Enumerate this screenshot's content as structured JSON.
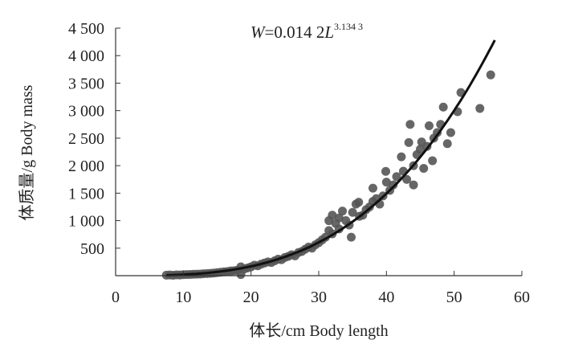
{
  "chart_data": {
    "type": "scatter",
    "title": "",
    "equation": {
      "lhs": "W",
      "eq_text": "=0.014 2",
      "var": "L",
      "exponent": "3.134 3",
      "a": 0.0142,
      "b": 3.1343
    },
    "xlabel": "体长/cm Body length",
    "ylabel": "体质量/g Body mass",
    "xlim": [
      0,
      60
    ],
    "ylim": [
      0,
      4500
    ],
    "xticks": [
      "0",
      "10",
      "20",
      "30",
      "40",
      "50",
      "60"
    ],
    "xtick_values": [
      0,
      10,
      20,
      30,
      40,
      50,
      60
    ],
    "yticks": [
      "500",
      "1 000",
      "1 500",
      "2 000",
      "2 500",
      "3 000",
      "3 500",
      "4 000",
      "4 500"
    ],
    "ytick_values": [
      500,
      1000,
      1500,
      2000,
      2500,
      3000,
      3500,
      4000,
      4500
    ],
    "grid": false,
    "fit_curve_range": [
      7.5,
      56
    ],
    "point_color": "#555555",
    "curve_color": "#111111",
    "points": [
      [
        7.5,
        10
      ],
      [
        8,
        12
      ],
      [
        8.5,
        8
      ],
      [
        9,
        15
      ],
      [
        9.5,
        12
      ],
      [
        10,
        18
      ],
      [
        10.5,
        20
      ],
      [
        11,
        22
      ],
      [
        11.5,
        25
      ],
      [
        12,
        28
      ],
      [
        12.5,
        30
      ],
      [
        13,
        35
      ],
      [
        13.5,
        38
      ],
      [
        14,
        42
      ],
      [
        14.5,
        48
      ],
      [
        15,
        55
      ],
      [
        15.5,
        62
      ],
      [
        16,
        70
      ],
      [
        16.5,
        75
      ],
      [
        17,
        85
      ],
      [
        17.5,
        90
      ],
      [
        18,
        100
      ],
      [
        18.5,
        160
      ],
      [
        18.5,
        20
      ],
      [
        19,
        120
      ],
      [
        19.5,
        140
      ],
      [
        20,
        160
      ],
      [
        20.5,
        190
      ],
      [
        21,
        180
      ],
      [
        21.5,
        210
      ],
      [
        22,
        230
      ],
      [
        22.5,
        250
      ],
      [
        23,
        240
      ],
      [
        23.5,
        270
      ],
      [
        24,
        300
      ],
      [
        24.5,
        290
      ],
      [
        25,
        330
      ],
      [
        25.5,
        350
      ],
      [
        26,
        380
      ],
      [
        26.5,
        360
      ],
      [
        27,
        420
      ],
      [
        27.5,
        440
      ],
      [
        28,
        480
      ],
      [
        28.5,
        520
      ],
      [
        29,
        500
      ],
      [
        29.5,
        560
      ],
      [
        30,
        600
      ],
      [
        30.5,
        650
      ],
      [
        31,
        700
      ],
      [
        31.5,
        1000
      ],
      [
        31.5,
        820
      ],
      [
        32,
        1100
      ],
      [
        32,
        760
      ],
      [
        32.5,
        950
      ],
      [
        33,
        1050
      ],
      [
        33,
        850
      ],
      [
        33.5,
        1175
      ],
      [
        34,
        1000
      ],
      [
        34.5,
        920
      ],
      [
        34.8,
        700
      ],
      [
        35,
        1150
      ],
      [
        35.5,
        1300
      ],
      [
        35.9,
        1335
      ],
      [
        36,
        1080
      ],
      [
        36.5,
        1100
      ],
      [
        37,
        1200
      ],
      [
        37.5,
        1250
      ],
      [
        38,
        1590
      ],
      [
        38,
        1350
      ],
      [
        38.5,
        1400
      ],
      [
        39,
        1300
      ],
      [
        39.5,
        1450
      ],
      [
        39.9,
        1895
      ],
      [
        40,
        1700
      ],
      [
        40.5,
        1550
      ],
      [
        41,
        1650
      ],
      [
        41.5,
        1800
      ],
      [
        42.2,
        2160
      ],
      [
        42.5,
        1900
      ],
      [
        43,
        1750
      ],
      [
        43.3,
        2420
      ],
      [
        43.5,
        2750
      ],
      [
        44,
        1650
      ],
      [
        44,
        2000
      ],
      [
        44.5,
        2200
      ],
      [
        45,
        2300
      ],
      [
        45.2,
        2430
      ],
      [
        45.5,
        1950
      ],
      [
        46,
        2350
      ],
      [
        46.3,
        2725
      ],
      [
        46.8,
        2090
      ],
      [
        47,
        2500
      ],
      [
        47.5,
        2600
      ],
      [
        48,
        2750
      ],
      [
        48.4,
        3065
      ],
      [
        49,
        2400
      ],
      [
        49.5,
        2600
      ],
      [
        50.5,
        2980
      ],
      [
        51,
        3330
      ],
      [
        53.8,
        3040
      ],
      [
        55.4,
        3650
      ]
    ]
  }
}
